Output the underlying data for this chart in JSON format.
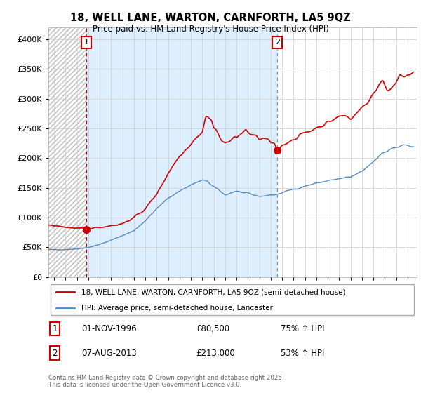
{
  "title": "18, WELL LANE, WARTON, CARNFORTH, LA5 9QZ",
  "subtitle": "Price paid vs. HM Land Registry's House Price Index (HPI)",
  "legend_line1": "18, WELL LANE, WARTON, CARNFORTH, LA5 9QZ (semi-detached house)",
  "legend_line2": "HPI: Average price, semi-detached house, Lancaster",
  "footnote": "Contains HM Land Registry data © Crown copyright and database right 2025.\nThis data is licensed under the Open Government Licence v3.0.",
  "annotation1_date": "01-NOV-1996",
  "annotation1_price": "£80,500",
  "annotation1_hpi": "75% ↑ HPI",
  "annotation2_date": "07-AUG-2013",
  "annotation2_price": "£213,000",
  "annotation2_hpi": "53% ↑ HPI",
  "sale1_year": 1996.83,
  "sale1_price": 80500,
  "sale2_year": 2013.58,
  "sale2_price": 213000,
  "red_color": "#cc0000",
  "blue_color": "#5588bb",
  "vline2_color": "#7799bb",
  "hatch_color": "#cccccc",
  "grid_color": "#cccccc",
  "fill_between_color": "#ddeeff",
  "ylim": [
    0,
    420000
  ],
  "yticks": [
    0,
    50000,
    100000,
    150000,
    200000,
    250000,
    300000,
    350000,
    400000
  ],
  "xlim_start": 1993.5,
  "xlim_end": 2025.8
}
